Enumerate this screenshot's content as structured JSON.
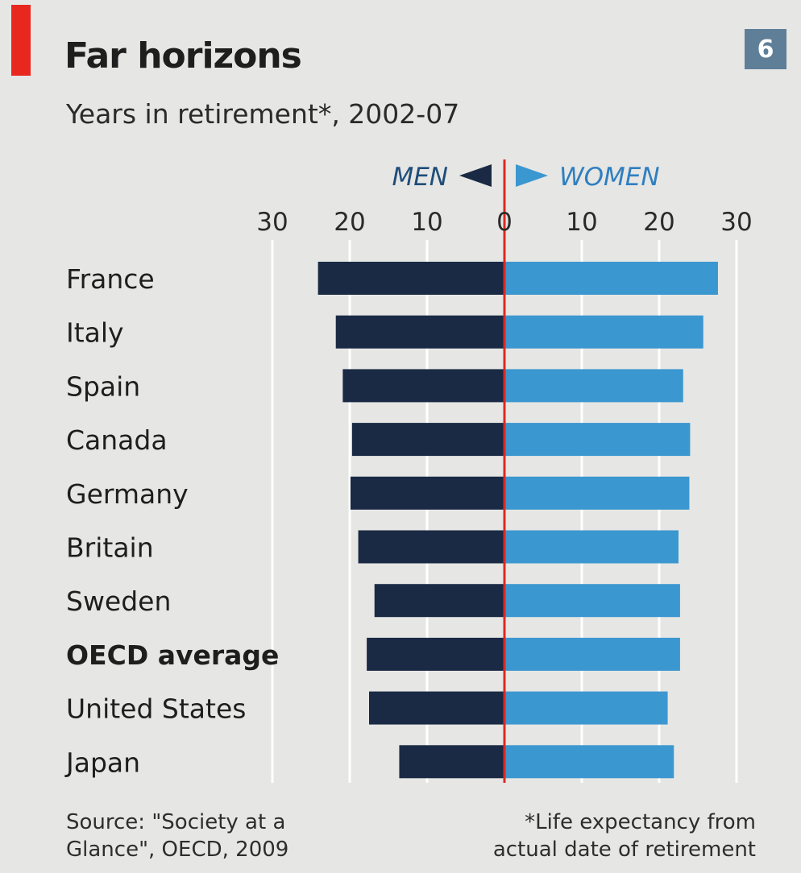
{
  "title": "Far horizons",
  "subtitle": "Years in retirement*, 2002-07",
  "badge": "6",
  "source": [
    "Source: \"Society at a",
    "Glance\", OECD, 2009"
  ],
  "footnote": [
    "*Life expectancy from",
    "actual date of retirement"
  ],
  "colors": {
    "men": "#1a2a44",
    "women": "#3b97cf",
    "zero_line": "#e0281e",
    "men_label": "#1f4d7a",
    "women_label": "#2f7fc0",
    "accent": "#e8281e",
    "badge": "#5f7f99",
    "gridline": "#ffffff"
  },
  "chart_data": {
    "type": "bar",
    "orientation": "horizontal-diverging",
    "categories": [
      "France",
      "Italy",
      "Spain",
      "Canada",
      "Germany",
      "Britain",
      "Sweden",
      "OECD average",
      "United States",
      "Japan"
    ],
    "highlight_category": "OECD average",
    "series": [
      {
        "name": "MEN",
        "direction": "left",
        "values": [
          24.1,
          21.8,
          20.9,
          19.7,
          19.9,
          18.9,
          16.8,
          17.8,
          17.5,
          13.6
        ]
      },
      {
        "name": "WOMEN",
        "direction": "right",
        "values": [
          27.6,
          25.7,
          23.1,
          24.0,
          23.9,
          22.5,
          22.7,
          22.7,
          21.1,
          21.9
        ]
      }
    ],
    "xticks": [
      "30",
      "20",
      "10",
      "0",
      "10",
      "20",
      "30"
    ],
    "xlim": [
      -30,
      30
    ],
    "grid": true
  }
}
